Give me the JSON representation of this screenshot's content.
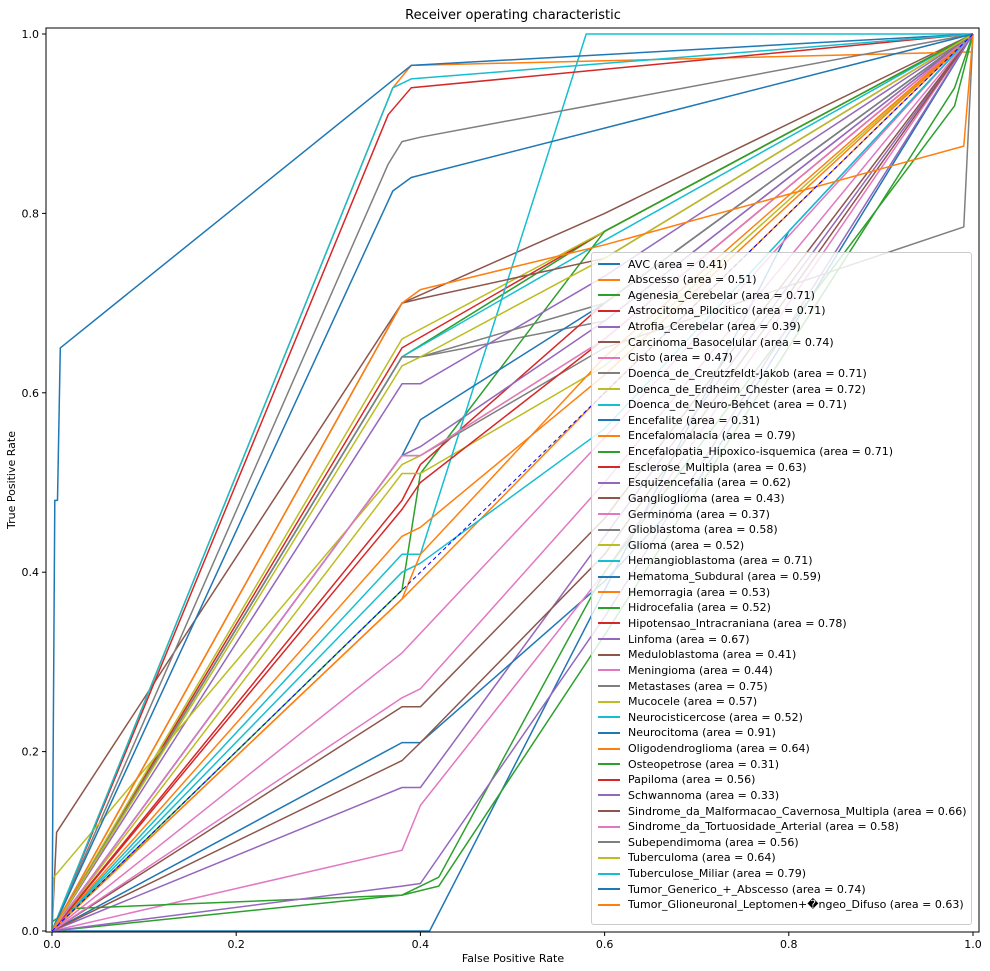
{
  "chart_data": {
    "type": "line",
    "title": "Receiver operating characteristic",
    "xlabel": "False Positive Rate",
    "ylabel": "True Positive Rate",
    "xlim": [
      0,
      1
    ],
    "ylim": [
      0,
      1
    ],
    "xticks": [
      "0.0",
      "0.2",
      "0.4",
      "0.6",
      "0.8",
      "1.0"
    ],
    "yticks": [
      "0.0",
      "0.2",
      "0.4",
      "0.6",
      "0.8",
      "1.0"
    ],
    "grid": false,
    "legend_position": "lower-right",
    "reference_line": {
      "points": [
        [
          0,
          0
        ],
        [
          1,
          1
        ]
      ],
      "style": "dashed",
      "color": "#0000ff"
    },
    "series": [
      {
        "name": "AVC (area = 0.41)",
        "color": "#1f77b4",
        "points": [
          [
            0,
            0
          ],
          [
            0.41,
            0
          ],
          [
            0.8,
            0.78
          ],
          [
            1,
            1
          ]
        ]
      },
      {
        "name": "Abscesso (area = 0.51)",
        "color": "#ff7f0e",
        "points": [
          [
            0,
            0
          ],
          [
            0.38,
            0.37
          ],
          [
            0.6,
            0.6
          ],
          [
            1,
            1
          ]
        ]
      },
      {
        "name": "Agenesia_Cerebelar (area = 0.71)",
        "color": "#2ca02c",
        "points": [
          [
            0,
            0
          ],
          [
            0.38,
            0.64
          ],
          [
            0.6,
            0.78
          ],
          [
            1,
            1
          ]
        ]
      },
      {
        "name": "Astrocitoma_Pilocitico (area = 0.71)",
        "color": "#d62728",
        "points": [
          [
            0,
            0
          ],
          [
            0.38,
            0.65
          ],
          [
            0.6,
            0.78
          ],
          [
            1,
            1
          ]
        ]
      },
      {
        "name": "Atrofia_Cerebelar (area = 0.39)",
        "color": "#9467bd",
        "points": [
          [
            0,
            0
          ],
          [
            0.38,
            0.16
          ],
          [
            0.4,
            0.16
          ],
          [
            0.6,
            0.44
          ],
          [
            1,
            1
          ]
        ]
      },
      {
        "name": "Carcinoma_Basocelular (area = 0.74)",
        "color": "#8c564b",
        "points": [
          [
            0,
            0
          ],
          [
            0.005,
            0.11
          ],
          [
            0.38,
            0.7
          ],
          [
            0.6,
            0.8
          ],
          [
            1,
            1
          ]
        ]
      },
      {
        "name": "Cisto (area = 0.47)",
        "color": "#e377c2",
        "points": [
          [
            0,
            0
          ],
          [
            0.38,
            0.31
          ],
          [
            0.6,
            0.55
          ],
          [
            1,
            1
          ]
        ]
      },
      {
        "name": "Doenca_de_Creutzfeldt-Jakob (area = 0.71)",
        "color": "#7f7f7f",
        "points": [
          [
            0,
            0
          ],
          [
            0.38,
            0.64
          ],
          [
            0.4,
            0.64
          ],
          [
            0.6,
            0.68
          ],
          [
            1,
            1
          ]
        ]
      },
      {
        "name": "Doenca_de_Erdheim_Chester (area = 0.72)",
        "color": "#bcbd22",
        "points": [
          [
            0,
            0
          ],
          [
            0.38,
            0.66
          ],
          [
            0.6,
            0.78
          ],
          [
            1,
            1
          ]
        ]
      },
      {
        "name": "Doenca_de_Neuro-Behcet (area = 0.71)",
        "color": "#17becf",
        "points": [
          [
            0,
            0
          ],
          [
            0.38,
            0.64
          ],
          [
            0.6,
            0.77
          ],
          [
            1,
            1
          ]
        ]
      },
      {
        "name": "Encefalite (area = 0.31)",
        "color": "#1f77b4",
        "points": [
          [
            0,
            0
          ],
          [
            0.38,
            0.21
          ],
          [
            0.4,
            0.21
          ],
          [
            0.6,
            0.39
          ],
          [
            0.7,
            0.5
          ],
          [
            1,
            1
          ]
        ]
      },
      {
        "name": "Encefalomalacia (area = 0.79)",
        "color": "#ff7f0e",
        "points": [
          [
            0,
            0
          ],
          [
            0.37,
            0.94
          ],
          [
            0.39,
            0.965
          ],
          [
            1,
            0.98
          ]
        ]
      },
      {
        "name": "Encefalopatia_Hipoxico-isquemica (area = 0.71)",
        "color": "#2ca02c",
        "points": [
          [
            0,
            0
          ],
          [
            0.38,
            0.38
          ],
          [
            0.4,
            0.51
          ],
          [
            0.6,
            0.78
          ],
          [
            1,
            1
          ]
        ]
      },
      {
        "name": "Esclerose_Multipla (area = 0.63)",
        "color": "#d62728",
        "points": [
          [
            0,
            0
          ],
          [
            0.38,
            0.48
          ],
          [
            0.4,
            0.52
          ],
          [
            0.6,
            0.7
          ],
          [
            1,
            1
          ]
        ]
      },
      {
        "name": "Esquizencefalia (area = 0.62)",
        "color": "#9467bd",
        "points": [
          [
            0,
            0
          ],
          [
            0.38,
            0.53
          ],
          [
            0.4,
            0.54
          ],
          [
            0.6,
            0.68
          ],
          [
            1,
            1
          ]
        ]
      },
      {
        "name": "Ganglioglioma (area = 0.43)",
        "color": "#8c564b",
        "points": [
          [
            0,
            0
          ],
          [
            0.38,
            0.25
          ],
          [
            0.4,
            0.25
          ],
          [
            0.6,
            0.46
          ],
          [
            1,
            1
          ]
        ]
      },
      {
        "name": "Germinoma (area = 0.37)",
        "color": "#e377c2",
        "points": [
          [
            0,
            0
          ],
          [
            0.38,
            0.09
          ],
          [
            0.4,
            0.14
          ],
          [
            0.6,
            0.4
          ],
          [
            1,
            1
          ]
        ]
      },
      {
        "name": "Glioblastoma (area = 0.58)",
        "color": "#7f7f7f",
        "points": [
          [
            0,
            0
          ],
          [
            0.38,
            0.53
          ],
          [
            0.4,
            0.53
          ],
          [
            0.6,
            0.65
          ],
          [
            0.99,
            0.785
          ],
          [
            1,
            1
          ]
        ]
      },
      {
        "name": "Glioma (area = 0.52)",
        "color": "#bcbd22",
        "points": [
          [
            0,
            0
          ],
          [
            0.38,
            0.51
          ],
          [
            0.4,
            0.51
          ],
          [
            0.6,
            0.63
          ],
          [
            1,
            1
          ]
        ]
      },
      {
        "name": "Hemangioblastoma (area = 0.71)",
        "color": "#17becf",
        "points": [
          [
            0,
            0
          ],
          [
            0.38,
            0.42
          ],
          [
            0.4,
            0.42
          ],
          [
            0.58,
            1
          ],
          [
            1,
            1
          ]
        ]
      },
      {
        "name": "Hematoma_Subdural (area = 0.59)",
        "color": "#1f77b4",
        "points": [
          [
            0,
            0
          ],
          [
            0.38,
            0.53
          ],
          [
            0.4,
            0.57
          ],
          [
            0.6,
            0.7
          ],
          [
            1,
            1
          ]
        ]
      },
      {
        "name": "Hemorragia (area = 0.53)",
        "color": "#ff7f0e",
        "points": [
          [
            0,
            0
          ],
          [
            0.38,
            0.44
          ],
          [
            0.4,
            0.45
          ],
          [
            0.6,
            0.62
          ],
          [
            1,
            1
          ]
        ]
      },
      {
        "name": "Hidrocefalia (area = 0.52)",
        "color": "#2ca02c",
        "points": [
          [
            0,
            0.01
          ],
          [
            0.02,
            0.025
          ],
          [
            0.38,
            0.04
          ],
          [
            0.42,
            0.06
          ],
          [
            0.6,
            0.4
          ],
          [
            0.98,
            0.92
          ],
          [
            1,
            1
          ]
        ]
      },
      {
        "name": "Hipotensao_Intracraniana (area = 0.78)",
        "color": "#d62728",
        "points": [
          [
            0,
            0
          ],
          [
            0.365,
            0.91
          ],
          [
            0.39,
            0.94
          ],
          [
            1,
            1
          ]
        ]
      },
      {
        "name": "Linfoma (area = 0.67)",
        "color": "#9467bd",
        "points": [
          [
            0,
            0
          ],
          [
            0.38,
            0.61
          ],
          [
            0.4,
            0.61
          ],
          [
            0.6,
            0.73
          ],
          [
            1,
            1
          ]
        ]
      },
      {
        "name": "Meduloblastoma (area = 0.41)",
        "color": "#8c564b",
        "points": [
          [
            0,
            0
          ],
          [
            0.38,
            0.19
          ],
          [
            0.4,
            0.21
          ],
          [
            0.6,
            0.42
          ],
          [
            1,
            1
          ]
        ]
      },
      {
        "name": "Meningioma (area = 0.44)",
        "color": "#e377c2",
        "points": [
          [
            0,
            0
          ],
          [
            0.38,
            0.26
          ],
          [
            0.4,
            0.27
          ],
          [
            0.6,
            0.5
          ],
          [
            1,
            1
          ]
        ]
      },
      {
        "name": "Metastases (area = 0.75)",
        "color": "#7f7f7f",
        "points": [
          [
            0,
            0
          ],
          [
            0.365,
            0.855
          ],
          [
            0.38,
            0.88
          ],
          [
            0.4,
            0.885
          ],
          [
            1,
            1
          ]
        ]
      },
      {
        "name": "Mucocele (area = 0.57)",
        "color": "#bcbd22",
        "points": [
          [
            0,
            0
          ],
          [
            0.002,
            0.06
          ],
          [
            0.38,
            0.52
          ],
          [
            0.4,
            0.53
          ],
          [
            0.6,
            0.66
          ],
          [
            1,
            1
          ]
        ]
      },
      {
        "name": "Neurocisticercose (area = 0.52)",
        "color": "#17becf",
        "points": [
          [
            0,
            0
          ],
          [
            0.38,
            0.4
          ],
          [
            0.4,
            0.41
          ],
          [
            0.6,
            0.56
          ],
          [
            1,
            1
          ]
        ]
      },
      {
        "name": "Neurocitoma (area = 0.91)",
        "color": "#1f77b4",
        "points": [
          [
            0,
            0
          ],
          [
            0.003,
            0.48
          ],
          [
            0.006,
            0.48
          ],
          [
            0.009,
            0.65
          ],
          [
            0.39,
            0.965
          ],
          [
            1,
            1
          ]
        ]
      },
      {
        "name": "Oligodendroglioma (area = 0.64)",
        "color": "#ff7f0e",
        "points": [
          [
            0,
            0
          ],
          [
            0.38,
            0.37
          ],
          [
            0.4,
            0.42
          ],
          [
            0.6,
            0.64
          ],
          [
            1,
            1
          ]
        ]
      },
      {
        "name": "Osteopetrose (area = 0.31)",
        "color": "#2ca02c",
        "points": [
          [
            0,
            0
          ],
          [
            0.38,
            0.04
          ],
          [
            0.42,
            0.05
          ],
          [
            0.6,
            0.33
          ],
          [
            0.98,
            0.94
          ],
          [
            1,
            1
          ]
        ]
      },
      {
        "name": "Papiloma (area = 0.56)",
        "color": "#d62728",
        "points": [
          [
            0,
            0
          ],
          [
            0.38,
            0.47
          ],
          [
            0.4,
            0.5
          ],
          [
            0.6,
            0.66
          ],
          [
            1,
            1
          ]
        ]
      },
      {
        "name": "Schwannoma (area = 0.33)",
        "color": "#9467bd",
        "points": [
          [
            0,
            0
          ],
          [
            0.38,
            0.05
          ],
          [
            0.4,
            0.053
          ],
          [
            0.6,
            0.35
          ],
          [
            1,
            1
          ]
        ]
      },
      {
        "name": "Sindrome_da_Malformacao_Cavernosa_Multipla (area = 0.66)",
        "color": "#8c564b",
        "points": [
          [
            0,
            0
          ],
          [
            0.38,
            0.7
          ],
          [
            0.4,
            0.705
          ],
          [
            0.6,
            0.75
          ],
          [
            1,
            1
          ]
        ]
      },
      {
        "name": "Sindrome_da_Tortuosidade_Arterial (area = 0.58)",
        "color": "#e377c2",
        "points": [
          [
            0,
            0
          ],
          [
            0.38,
            0.53
          ],
          [
            0.4,
            0.53
          ],
          [
            0.6,
            0.66
          ],
          [
            1,
            1
          ]
        ]
      },
      {
        "name": "Subependimoma (area = 0.56)",
        "color": "#7f7f7f",
        "points": [
          [
            0,
            0
          ],
          [
            0.38,
            0.64
          ],
          [
            0.4,
            0.64
          ],
          [
            0.6,
            0.7
          ],
          [
            1,
            1
          ]
        ]
      },
      {
        "name": "Tuberculoma (area = 0.64)",
        "color": "#bcbd22",
        "points": [
          [
            0,
            0
          ],
          [
            0.38,
            0.63
          ],
          [
            0.4,
            0.64
          ],
          [
            0.6,
            0.75
          ],
          [
            1,
            1
          ]
        ]
      },
      {
        "name": "Tuberculose_Miliar (area = 0.79)",
        "color": "#17becf",
        "points": [
          [
            0,
            0
          ],
          [
            0.37,
            0.94
          ],
          [
            0.39,
            0.95
          ],
          [
            1,
            1
          ]
        ]
      },
      {
        "name": "Tumor_Generico_+_Abscesso (area = 0.74)",
        "color": "#1f77b4",
        "points": [
          [
            0,
            0
          ],
          [
            0.37,
            0.825
          ],
          [
            0.39,
            0.84
          ],
          [
            1,
            1
          ]
        ]
      },
      {
        "name": "Tumor_Glioneuronal_Leptomen+�ngeo_Difuso (area = 0.63)",
        "color": "#ff7f0e",
        "points": [
          [
            0,
            0
          ],
          [
            0.38,
            0.7
          ],
          [
            0.4,
            0.715
          ],
          [
            0.6,
            0.765
          ],
          [
            0.99,
            0.875
          ],
          [
            1,
            1
          ]
        ]
      }
    ]
  }
}
